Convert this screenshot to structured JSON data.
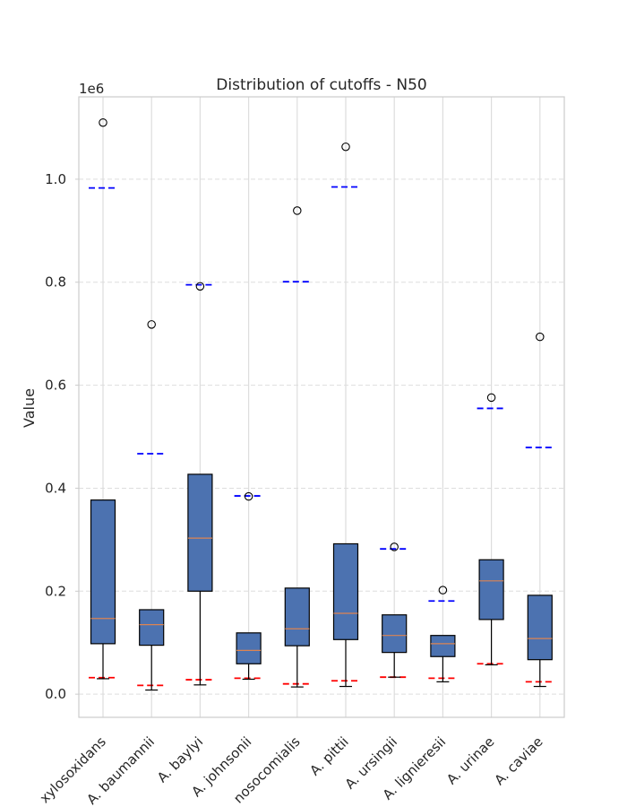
{
  "chart_data": {
    "type": "box",
    "title": "Distribution of cutoffs - N50",
    "ylabel": "Value",
    "xlabel": "",
    "y_offset_label": "1e6",
    "ylim": [
      -45000,
      1160000
    ],
    "yticks": [
      0,
      200000,
      400000,
      600000,
      800000,
      1000000
    ],
    "ytick_labels": [
      "0.0",
      "0.2",
      "0.4",
      "0.6",
      "0.8",
      "1.0"
    ],
    "grid": true,
    "categories": [
      "xylosoxidans",
      "A. baumannii",
      "A. baylyi",
      "A. johnsonii",
      "nosocomialis",
      "A. pittii",
      "A. ursingii",
      "A. lignieresii",
      "A. urinae",
      "A. caviae"
    ],
    "boxes": [
      {
        "whisker_low": 30000,
        "q1": 98000,
        "median": 147000,
        "q3": 377000,
        "whisker_high": 377000,
        "outliers": [
          1110000
        ],
        "lower_cutoff": 32000,
        "upper_cutoff": 983000
      },
      {
        "whisker_low": 8000,
        "q1": 95000,
        "median": 135000,
        "q3": 164000,
        "whisker_high": 164000,
        "outliers": [
          718000
        ],
        "lower_cutoff": 17000,
        "upper_cutoff": 467000
      },
      {
        "whisker_low": 18000,
        "q1": 200000,
        "median": 303000,
        "q3": 427000,
        "whisker_high": 427000,
        "outliers": [
          792000
        ],
        "lower_cutoff": 28000,
        "upper_cutoff": 795000
      },
      {
        "whisker_low": 29000,
        "q1": 59000,
        "median": 85000,
        "q3": 119000,
        "whisker_high": 119000,
        "outliers": [
          384000
        ],
        "lower_cutoff": 31000,
        "upper_cutoff": 385000
      },
      {
        "whisker_low": 14000,
        "q1": 94000,
        "median": 127000,
        "q3": 206000,
        "whisker_high": 206000,
        "outliers": [
          939000
        ],
        "lower_cutoff": 20000,
        "upper_cutoff": 801000
      },
      {
        "whisker_low": 15000,
        "q1": 106000,
        "median": 157000,
        "q3": 292000,
        "whisker_high": 292000,
        "outliers": [
          1063000
        ],
        "lower_cutoff": 26000,
        "upper_cutoff": 985000
      },
      {
        "whisker_low": 33000,
        "q1": 81000,
        "median": 114000,
        "q3": 154000,
        "whisker_high": 154000,
        "outliers": [
          286000
        ],
        "lower_cutoff": 33000,
        "upper_cutoff": 282000
      },
      {
        "whisker_low": 24000,
        "q1": 73000,
        "median": 98000,
        "q3": 114000,
        "whisker_high": 114000,
        "outliers": [
          202000
        ],
        "lower_cutoff": 31000,
        "upper_cutoff": 181000
      },
      {
        "whisker_low": 57000,
        "q1": 145000,
        "median": 220000,
        "q3": 261000,
        "whisker_high": 261000,
        "outliers": [
          576000
        ],
        "lower_cutoff": 59000,
        "upper_cutoff": 555000
      },
      {
        "whisker_low": 15000,
        "q1": 67000,
        "median": 108000,
        "q3": 192000,
        "whisker_high": 192000,
        "outliers": [
          694000
        ],
        "lower_cutoff": 24000,
        "upper_cutoff": 479000
      }
    ],
    "colors": {
      "box_fill": "#4c72b0",
      "median": "#dd8452",
      "lower_cutoff": "#ff0000",
      "upper_cutoff": "#0000ff",
      "grid": "#dddddd",
      "text": "#262626"
    }
  }
}
